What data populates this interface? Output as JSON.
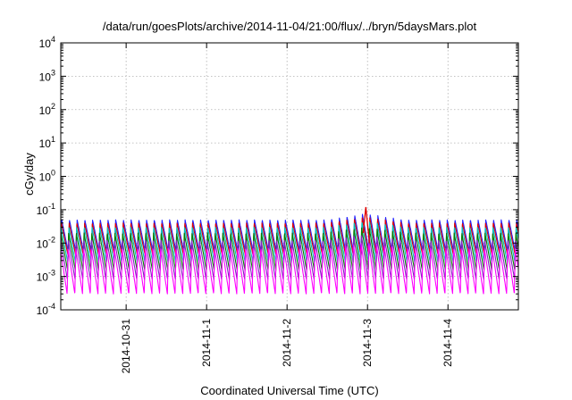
{
  "chart_data": {
    "type": "line",
    "title": "/data/run/goesPlots/archive/2014-11-04/21:00/flux/../bryn/5daysMars.plot",
    "xlabel": "Coordinated Universal Time (UTC)",
    "ylabel": "cGy/day",
    "y_scale": "log",
    "ylim": [
      0.0001,
      10000
    ],
    "xlim": [
      "2014-10-30T04:30",
      "2014-11-04T21:00"
    ],
    "grid": true,
    "x_ticks": [
      {
        "label": "2014-10-31",
        "value": "2014-10-31T00:00"
      },
      {
        "label": "2014-11-1",
        "value": "2014-11-01T00:00"
      },
      {
        "label": "2014-11-2",
        "value": "2014-11-02T00:00"
      },
      {
        "label": "2014-11-3",
        "value": "2014-11-03T00:00"
      },
      {
        "label": "2014-11-4",
        "value": "2014-11-04T00:00"
      }
    ],
    "y_ticks": [
      {
        "base": "10",
        "exp": "-4",
        "value": 0.0001
      },
      {
        "base": "10",
        "exp": "-3",
        "value": 0.001
      },
      {
        "base": "10",
        "exp": "-2",
        "value": 0.01
      },
      {
        "base": "10",
        "exp": "-1",
        "value": 0.1
      },
      {
        "base": "10",
        "exp": "0",
        "value": 1
      },
      {
        "base": "10",
        "exp": "1",
        "value": 10
      },
      {
        "base": "10",
        "exp": "2",
        "value": 100
      },
      {
        "base": "10",
        "exp": "3",
        "value": 1000
      },
      {
        "base": "10",
        "exp": "4",
        "value": 10000
      }
    ],
    "oscillation_period_hours": 2.3,
    "series": [
      {
        "color": "#2020ff",
        "peak": 0.05,
        "trough": 0.005
      },
      {
        "color": "#e00000",
        "peak": 0.04,
        "trough": 0.004
      },
      {
        "color": "#00c0c0",
        "peak": 0.03,
        "trough": 0.0025
      },
      {
        "color": "#008000",
        "peak": 0.02,
        "trough": 0.0015
      },
      {
        "color": "#8020c0",
        "peak": 0.012,
        "trough": 0.0008
      },
      {
        "color": "#ff00ff",
        "peak": 0.007,
        "trough": 0.0003
      }
    ],
    "highlight": {
      "time": "2014-11-02T23:30",
      "value": 0.12
    }
  }
}
